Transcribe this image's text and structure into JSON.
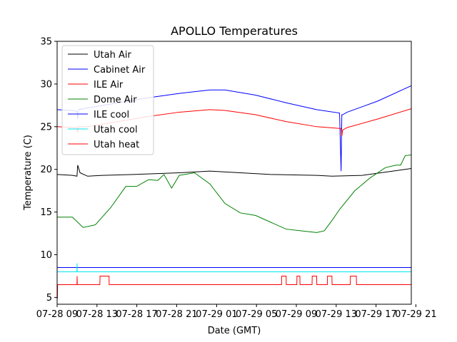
{
  "chart_data": {
    "type": "line",
    "title": "APOLLO Temperatures",
    "xlabel": "Date (GMT)",
    "ylabel": "Temperature (C)",
    "xlim": [
      0,
      23.2
    ],
    "ylim": [
      4.2,
      35
    ],
    "yticks": [
      5,
      10,
      15,
      20,
      25,
      30,
      35
    ],
    "x_unit": "hours since 07-28 09:00 GMT",
    "xticks": [
      {
        "x": 0,
        "label": "07-28 09"
      },
      {
        "x": 2.61,
        "label": "07-28 13"
      },
      {
        "x": 5.22,
        "label": "07-28 17"
      },
      {
        "x": 7.83,
        "label": "07-28 21"
      },
      {
        "x": 10.45,
        "label": "07-29 01"
      },
      {
        "x": 13.06,
        "label": "07-29 05"
      },
      {
        "x": 15.67,
        "label": "07-29 09"
      },
      {
        "x": 18.28,
        "label": "07-29 13"
      },
      {
        "x": 20.89,
        "label": "07-29 17"
      },
      {
        "x": 23.5,
        "label": "07-29 21"
      }
    ],
    "legend": {
      "location": "upper-left"
    },
    "series": [
      {
        "name": "Utah Air",
        "color": "#000000",
        "x": [
          0,
          1,
          1.3,
          1.35,
          1.5,
          2,
          3,
          5,
          8,
          10,
          12,
          14,
          17,
          18,
          20,
          22,
          23.2
        ],
        "y": [
          19.4,
          19.3,
          19.2,
          20.5,
          19.6,
          19.2,
          19.3,
          19.4,
          19.6,
          19.8,
          19.6,
          19.4,
          19.3,
          19.2,
          19.3,
          19.8,
          20.1
        ]
      },
      {
        "name": "Cabinet Air",
        "color": "#0000ff",
        "x": [
          0,
          1,
          1.3,
          1.35,
          1.4,
          2,
          4,
          6,
          8,
          10,
          11,
          13,
          15,
          17,
          18.5,
          18.6,
          18.65,
          18.7,
          19,
          21,
          23.2
        ],
        "y": [
          27.0,
          26.9,
          26.8,
          25.9,
          27.0,
          27.2,
          27.8,
          28.4,
          28.9,
          29.3,
          29.3,
          28.7,
          27.8,
          27.0,
          26.6,
          19.8,
          26.4,
          26.4,
          26.7,
          28.0,
          29.8
        ]
      },
      {
        "name": "ILE Air",
        "color": "#ff0000",
        "x": [
          0,
          1,
          1.3,
          1.35,
          1.4,
          2,
          4,
          6,
          8,
          10,
          11,
          13,
          15,
          17,
          18.5,
          18.6,
          18.65,
          18.7,
          19,
          21,
          23.2
        ],
        "y": [
          25.0,
          24.9,
          24.9,
          24.3,
          25.0,
          25.0,
          25.6,
          26.2,
          26.7,
          27.0,
          26.9,
          26.4,
          25.6,
          25.0,
          24.8,
          24.8,
          23.9,
          24.6,
          24.9,
          25.9,
          27.1
        ]
      },
      {
        "name": "Dome Air",
        "color": "#008000",
        "x": [
          0,
          1,
          1.7,
          2.5,
          3.5,
          4.5,
          5.2,
          6,
          6.6,
          7,
          7.5,
          8,
          9,
          10,
          11,
          12,
          13,
          14,
          15,
          16,
          17,
          17.5,
          18,
          18.5,
          19.5,
          20.5,
          21.5,
          22.2,
          22.5,
          22.8,
          23.2
        ],
        "y": [
          14.4,
          14.4,
          13.2,
          13.5,
          15.5,
          18.0,
          18.0,
          18.8,
          18.7,
          19.4,
          17.8,
          19.3,
          19.6,
          18.3,
          16.0,
          14.9,
          14.6,
          13.8,
          13.0,
          12.8,
          12.6,
          12.8,
          14.0,
          15.3,
          17.5,
          19.0,
          20.2,
          20.5,
          20.5,
          21.6,
          21.7
        ]
      },
      {
        "name": "ILE cool",
        "color": "#0000ff",
        "x": [
          0,
          23.2
        ],
        "y": [
          8.5,
          8.5
        ]
      },
      {
        "name": "Utah cool",
        "color": "#00e5ee",
        "x": [
          0,
          1.3,
          1.31,
          1.32,
          1.33,
          23.2
        ],
        "y": [
          8.0,
          8.0,
          9.0,
          8.0,
          8.0,
          8.0
        ]
      },
      {
        "name": "Utah heat",
        "color": "#ff0000",
        "x": [
          0,
          0.02,
          0.03,
          1.3,
          1.31,
          1.32,
          1.33,
          2.8,
          2.81,
          3.4,
          3.41,
          14.7,
          14.71,
          15.0,
          15.01,
          15.7,
          15.71,
          15.9,
          15.91,
          16.7,
          16.71,
          17.0,
          17.01,
          17.7,
          17.71,
          18.0,
          18.01,
          19.2,
          19.21,
          19.6,
          19.61,
          23.2
        ],
        "y": [
          4.9,
          4.9,
          6.5,
          6.5,
          7.5,
          6.5,
          6.5,
          6.5,
          7.5,
          7.5,
          6.5,
          6.5,
          7.5,
          7.5,
          6.5,
          6.5,
          7.5,
          7.5,
          6.5,
          6.5,
          7.5,
          7.5,
          6.5,
          6.5,
          7.5,
          7.5,
          6.5,
          6.5,
          7.5,
          7.5,
          6.5,
          6.5
        ]
      }
    ]
  }
}
